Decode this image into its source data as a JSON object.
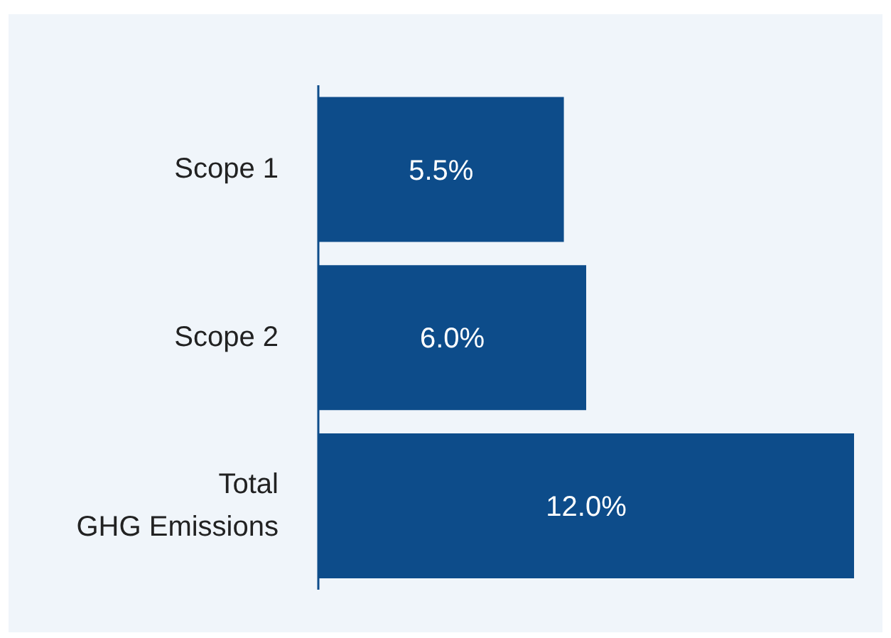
{
  "chart_data": {
    "type": "bar",
    "orientation": "horizontal",
    "categories": [
      "Scope 1",
      "Scope 2",
      "Total GHG Emissions"
    ],
    "values": [
      5.5,
      6.0,
      12.0
    ],
    "value_labels": [
      "5.5%",
      "6.0%",
      "12.0%"
    ],
    "color": "#0d4c8a",
    "tick_labels": "y",
    "grid": false
  }
}
